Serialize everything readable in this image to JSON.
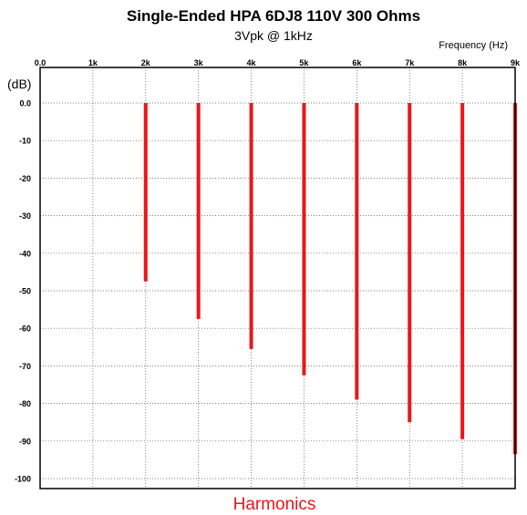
{
  "chart_data": {
    "type": "bar",
    "title": "Single-Ended HPA 6DJ8 110V 300 Ohms",
    "subtitle": "3Vpk @ 1kHz",
    "xlabel": "Harmonics",
    "x_unit_label": "Frequency   (Hz)",
    "ylabel": "(dB)",
    "x_ticks": [
      "0.0",
      "1k",
      "2k",
      "3k",
      "4k",
      "5k",
      "6k",
      "7k",
      "8k",
      "9k"
    ],
    "y_ticks": [
      "0.0",
      "-10",
      "-20",
      "-30",
      "-40",
      "-50",
      "-60",
      "-70",
      "-80",
      "-90",
      "-100"
    ],
    "xlim": [
      0,
      9000
    ],
    "ylim": [
      -103,
      0
    ],
    "grid": true,
    "bar_color": "#e8171c",
    "series": [
      {
        "x": [
          2000,
          3000,
          4000,
          5000,
          6000,
          7000,
          8000,
          9000
        ],
        "values": [
          -47.5,
          -57.5,
          -65.5,
          -72.5,
          -79,
          -85,
          -89.5,
          -93.5
        ]
      }
    ]
  }
}
